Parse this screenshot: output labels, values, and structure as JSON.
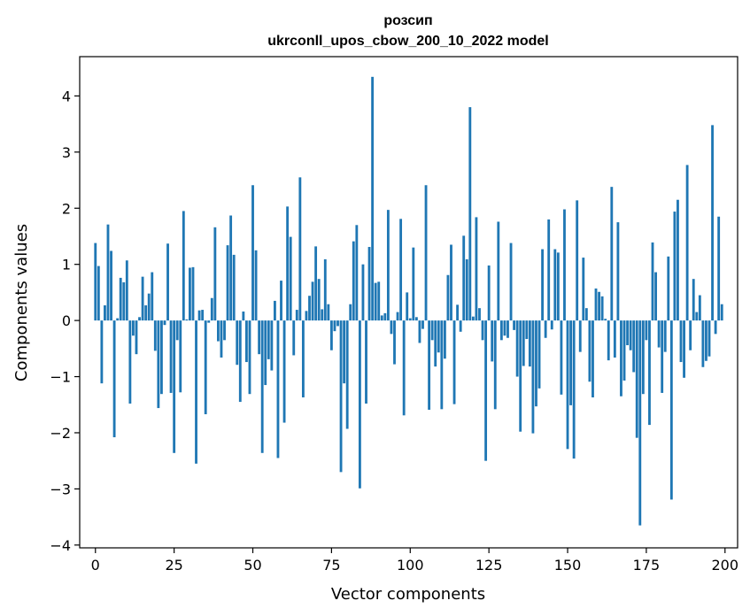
{
  "chart_data": {
    "type": "bar",
    "title_lines": [
      "розсип",
      "ukrconll_upos_cbow_200_10_2022 model"
    ],
    "xlabel": "Vector components",
    "ylabel": "Components values",
    "xlim": [
      -5,
      204
    ],
    "ylim": [
      -4.05,
      4.7
    ],
    "x_ticks": [
      0,
      25,
      50,
      75,
      100,
      125,
      150,
      175,
      200
    ],
    "y_ticks": [
      -4,
      -3,
      -2,
      -1,
      0,
      1,
      2,
      3,
      4
    ],
    "y_tick_labels": [
      "−4",
      "−3",
      "−2",
      "−1",
      "0",
      "1",
      "2",
      "3",
      "4"
    ],
    "bar_color": "#1f77b4",
    "grid": false,
    "values": [
      1.38,
      0.97,
      -1.12,
      0.27,
      1.71,
      1.24,
      -2.08,
      0.04,
      0.76,
      0.68,
      1.07,
      -1.48,
      -0.27,
      -0.6,
      0.06,
      0.78,
      0.27,
      0.48,
      0.86,
      -0.54,
      -1.56,
      -1.31,
      -0.08,
      1.37,
      -1.29,
      -2.36,
      -0.35,
      -1.28,
      1.95,
      0.02,
      0.94,
      0.95,
      -2.55,
      0.18,
      0.19,
      -1.67,
      -0.04,
      0.4,
      1.66,
      -0.37,
      -0.66,
      -0.35,
      1.34,
      1.87,
      1.17,
      -0.79,
      -1.45,
      0.16,
      -0.74,
      -1.31,
      2.41,
      1.25,
      -0.6,
      -2.36,
      -1.15,
      -0.69,
      -0.89,
      0.35,
      -2.45,
      0.71,
      -1.82,
      2.03,
      1.49,
      -0.62,
      0.19,
      2.55,
      -1.37,
      0.17,
      0.44,
      0.69,
      1.32,
      0.74,
      0.2,
      1.09,
      0.29,
      -0.53,
      -0.19,
      -0.1,
      -2.7,
      -1.12,
      -1.93,
      0.29,
      1.41,
      1.7,
      -2.99,
      1.0,
      -1.48,
      1.31,
      4.34,
      0.67,
      0.69,
      0.09,
      0.13,
      1.97,
      -0.24,
      -0.78,
      0.15,
      1.81,
      -1.69,
      0.5,
      0.04,
      1.3,
      0.06,
      -0.4,
      -0.15,
      2.41,
      -1.59,
      -0.35,
      -0.82,
      -0.57,
      -1.58,
      -0.68,
      0.81,
      1.35,
      -1.49,
      0.28,
      -0.2,
      1.51,
      1.09,
      3.8,
      0.07,
      1.84,
      0.22,
      -0.35,
      -2.5,
      0.98,
      -0.73,
      -1.58,
      1.76,
      -0.35,
      -0.27,
      -0.31,
      1.38,
      -0.17,
      -1.0,
      -1.98,
      -0.81,
      -0.33,
      -0.82,
      -2.01,
      -1.53,
      -1.21,
      1.27,
      -0.31,
      1.8,
      -0.16,
      1.27,
      1.21,
      -1.32,
      1.98,
      -2.29,
      -1.51,
      -2.46,
      2.14,
      -0.56,
      1.12,
      0.22,
      -1.09,
      -1.37,
      0.57,
      0.51,
      0.43,
      0.03,
      -0.71,
      2.38,
      -0.66,
      1.75,
      -1.35,
      -1.07,
      -0.44,
      -0.53,
      -0.92,
      -2.09,
      -3.65,
      -1.31,
      -0.35,
      -1.86,
      1.39,
      0.86,
      -0.48,
      -1.29,
      -0.56,
      1.14,
      -3.19,
      1.94,
      2.15,
      -0.74,
      -1.02,
      2.77,
      -0.53,
      0.74,
      0.15,
      0.45,
      -0.83,
      -0.72,
      -0.64,
      3.48,
      -0.24,
      1.85,
      0.29
    ]
  }
}
